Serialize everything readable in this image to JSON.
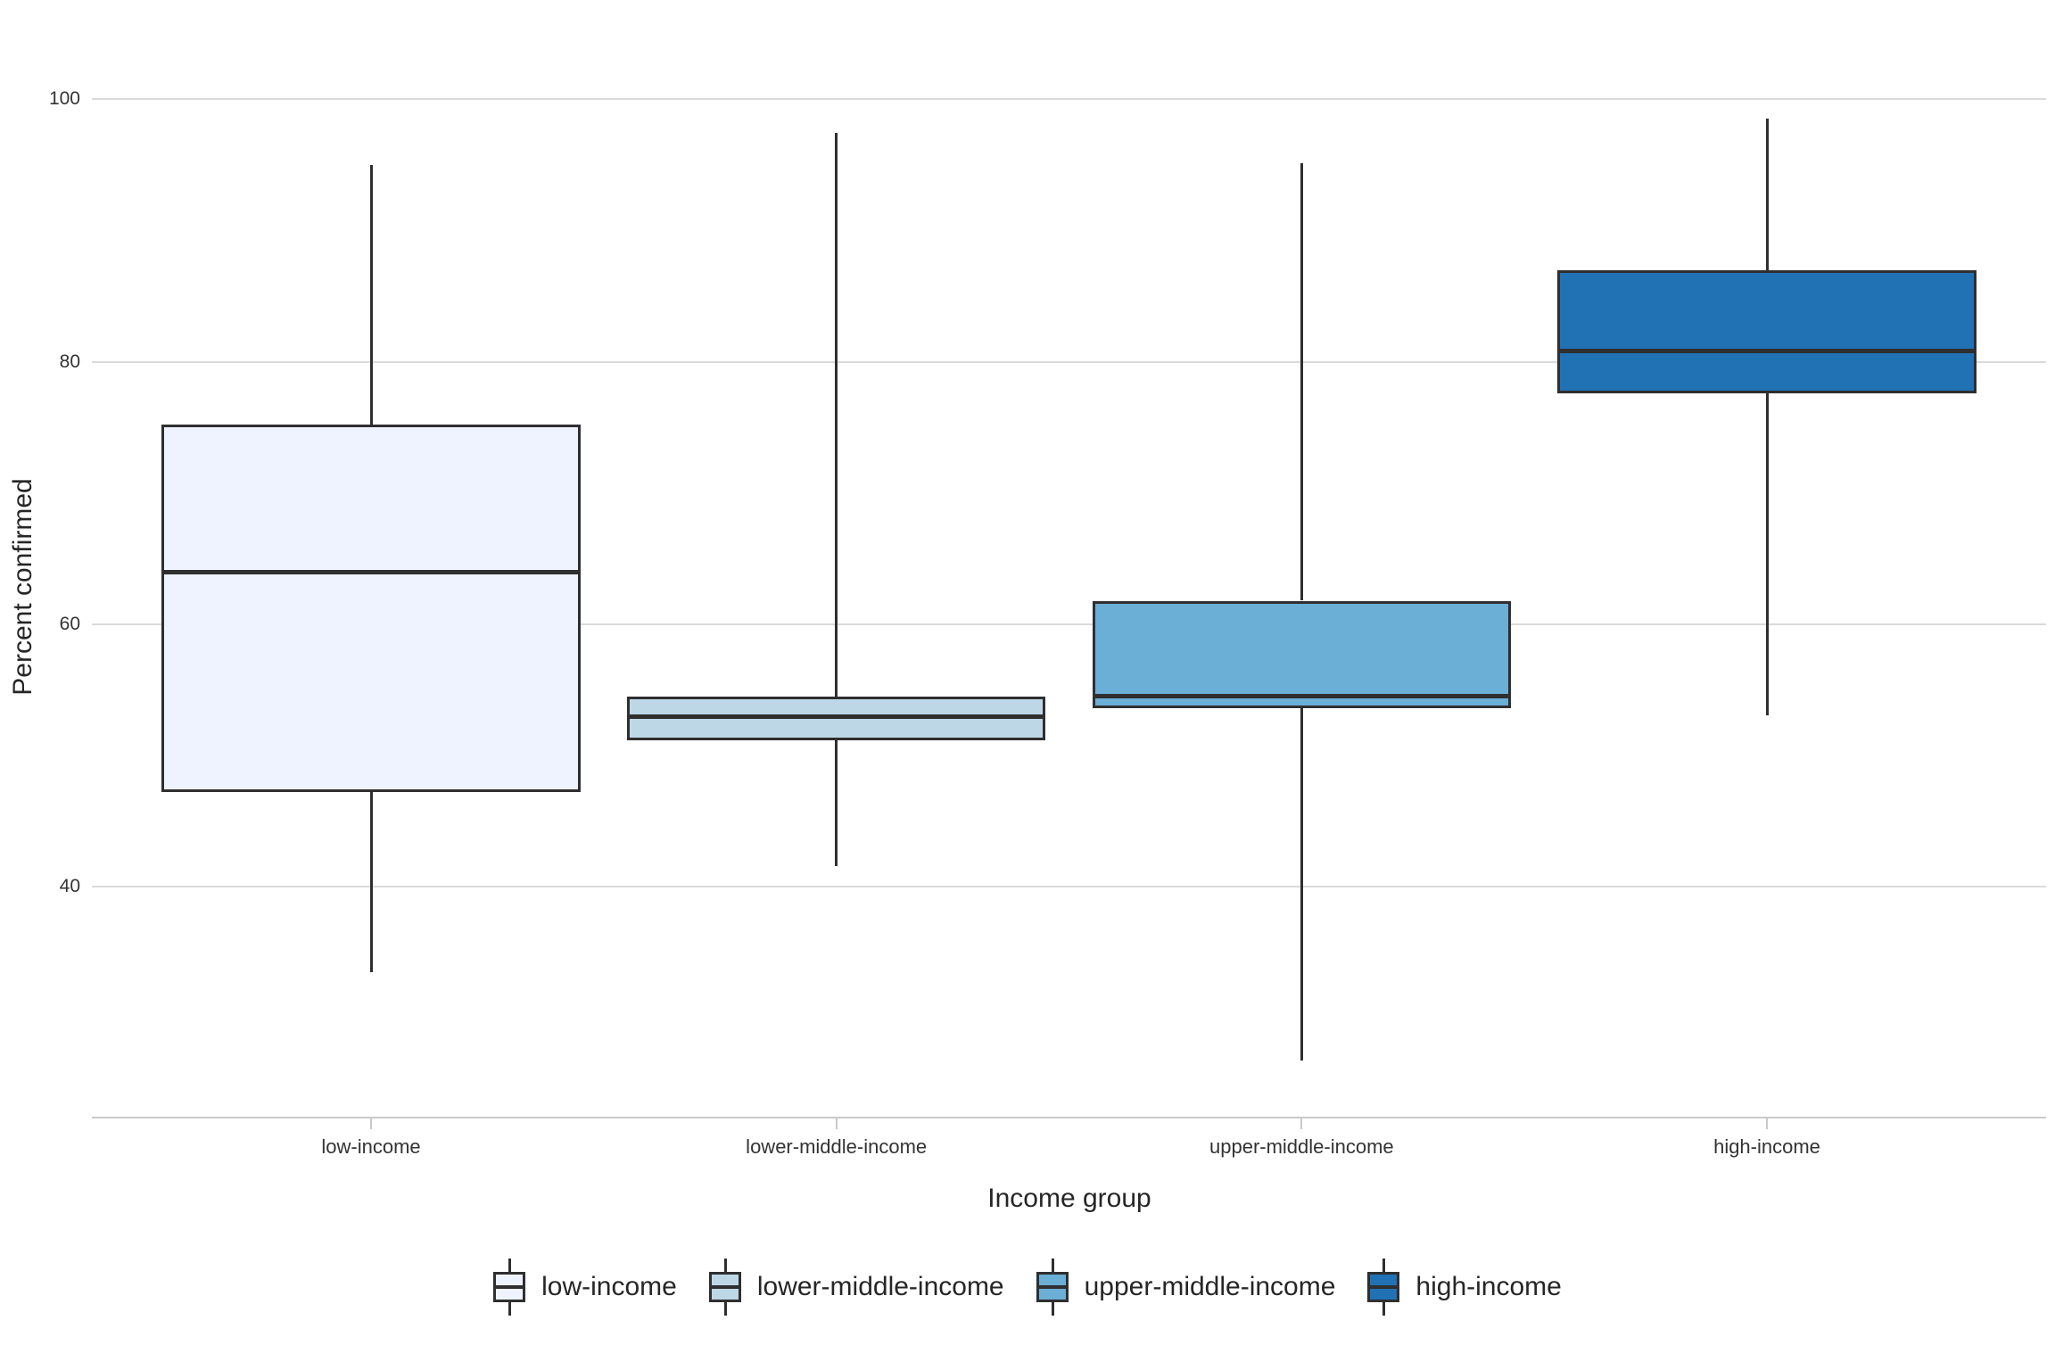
{
  "chart_data": {
    "type": "boxplot",
    "title": "",
    "xlabel": "Income group",
    "ylabel": "Percent confirmed",
    "ylim": [
      22.5,
      107.5
    ],
    "yticks": [
      40,
      60,
      80,
      100
    ],
    "grid": "horizontal-only",
    "legend_position": "bottom",
    "categories": [
      "low-income",
      "lower-middle-income",
      "upper-middle-income",
      "high-income"
    ],
    "series": [
      {
        "name": "low-income",
        "color": "#EFF3FF",
        "lower_whisker": 33.5,
        "q1": 47.2,
        "median": 64.0,
        "q3": 75.2,
        "upper_whisker": 95.0
      },
      {
        "name": "lower-middle-income",
        "color": "#BDD7E7",
        "lower_whisker": 41.6,
        "q1": 51.2,
        "median": 53.0,
        "q3": 54.5,
        "upper_whisker": 97.4
      },
      {
        "name": "upper-middle-income",
        "color": "#6BAED6",
        "lower_whisker": 26.8,
        "q1": 53.6,
        "median": 54.5,
        "q3": 61.8,
        "upper_whisker": 95.1
      },
      {
        "name": "high-income",
        "color": "#2171B5",
        "lower_whisker": 53.1,
        "q1": 77.6,
        "median": 80.8,
        "q3": 87.0,
        "upper_whisker": 98.5
      }
    ],
    "legend_items": [
      "low-income",
      "lower-middle-income",
      "upper-middle-income",
      "high-income"
    ],
    "colors": {
      "box_border": "#2f2f2f",
      "median_line": "#2f2f2f",
      "gridline": "#dadada",
      "axis_line": "#c9c9c9",
      "tick_text": "#333333",
      "title_text": "#262626",
      "background": "#ffffff"
    }
  }
}
